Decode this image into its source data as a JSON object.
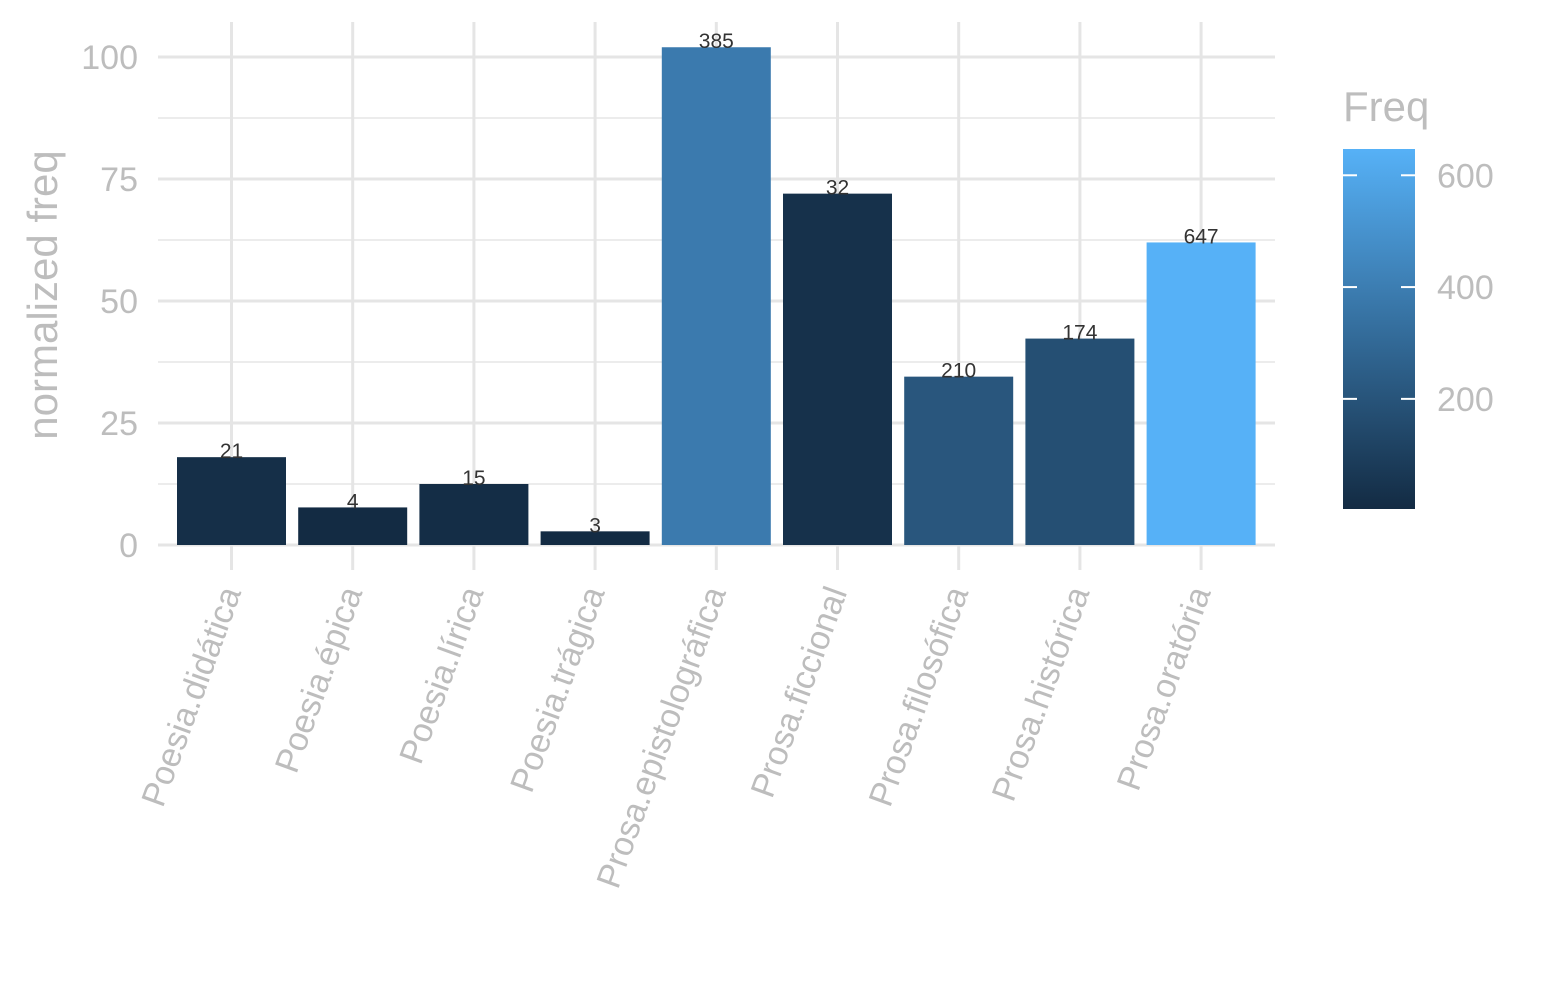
{
  "chart_data": {
    "type": "bar",
    "categories": [
      "Poesia.didática",
      "Poesia.épica",
      "Poesia.lírica",
      "Poesia.trágica",
      "Prosa.epistolográfica",
      "Prosa.ficcional",
      "Prosa.filosófica",
      "Prosa.histórica",
      "Prosa.oratória"
    ],
    "values": [
      18,
      7.7,
      12.5,
      2.8,
      102,
      72,
      34.5,
      42.3,
      62
    ],
    "freq": [
      21,
      4,
      15,
      3,
      385,
      32,
      210,
      174,
      647
    ],
    "bar_labels": [
      "21",
      "4",
      "15",
      "3",
      "385",
      "32",
      "210",
      "174",
      "647"
    ],
    "title": "",
    "xlabel": "",
    "ylabel": "normalized freq",
    "ylim": [
      0,
      105
    ],
    "yticks": [
      0,
      25,
      50,
      75,
      100
    ],
    "ytick_labels": [
      "0",
      "25",
      "50",
      "75",
      "100"
    ],
    "grid": true,
    "legend": {
      "title": "Freq",
      "placement": "right",
      "range": [
        3,
        647
      ],
      "ticks": [
        200,
        400,
        600
      ],
      "tick_labels": [
        "200",
        "400",
        "600"
      ],
      "color_low": "#132B43",
      "color_high": "#56B1F7"
    }
  }
}
